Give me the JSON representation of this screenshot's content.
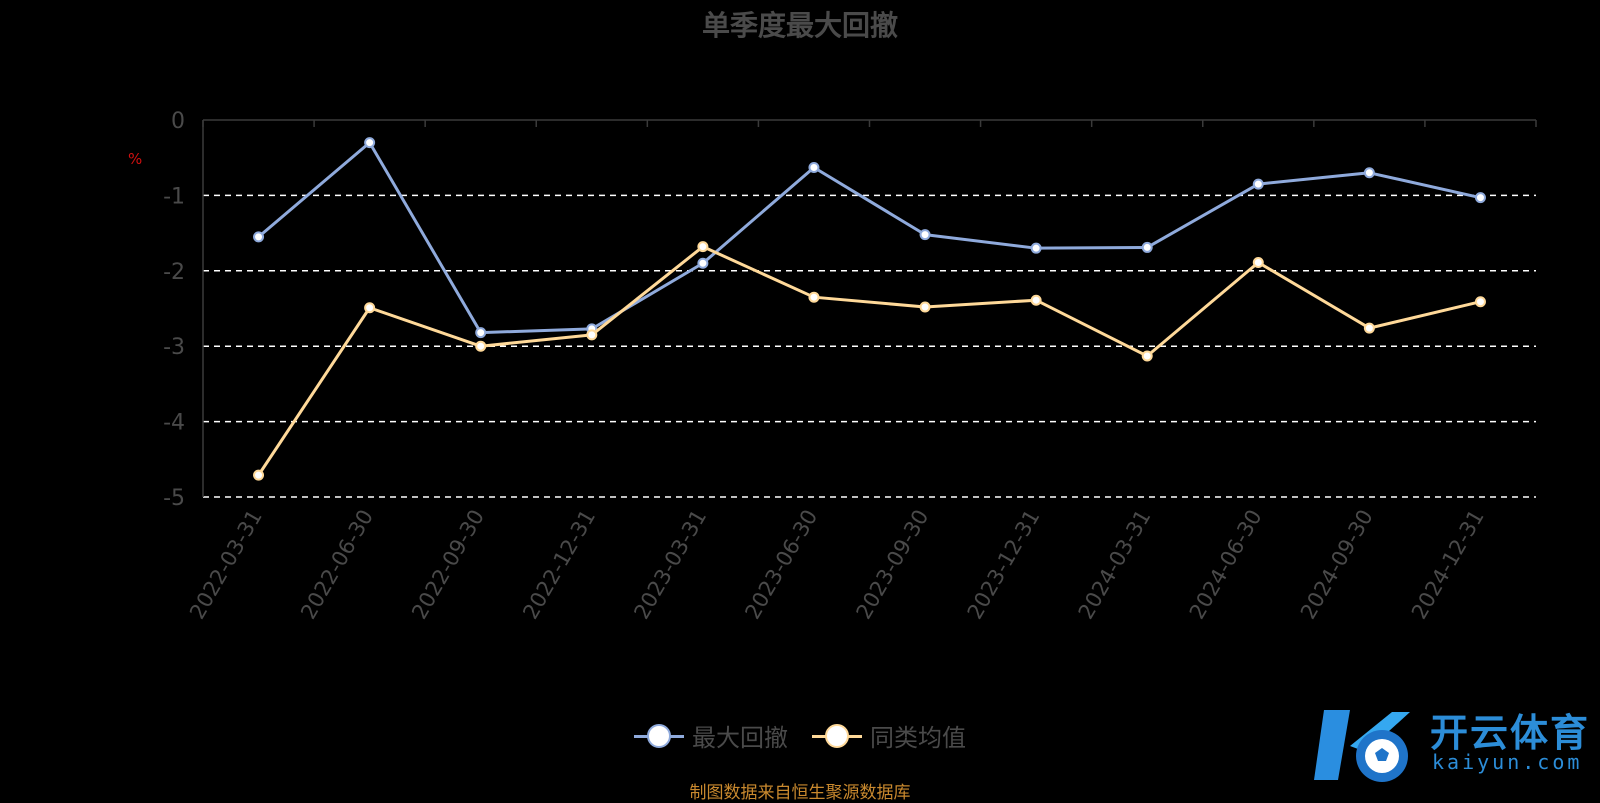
{
  "chart_data": {
    "type": "line",
    "title": "单季度最大回撤",
    "ylabel": "%",
    "ylim": [
      -5,
      0
    ],
    "yticks": [
      0,
      -1,
      -2,
      -3,
      -4,
      -5
    ],
    "grid": "horizontal dashed",
    "legend_position": "bottom",
    "categories": [
      "2022-03-31",
      "2022-06-30",
      "2022-09-30",
      "2022-12-31",
      "2023-03-31",
      "2023-06-30",
      "2023-09-30",
      "2023-12-31",
      "2024-03-31",
      "2024-06-30",
      "2024-09-30",
      "2024-12-31"
    ],
    "series": [
      {
        "name": "最大回撤",
        "color": "#8faadc",
        "values": [
          -1.55,
          -0.3,
          -2.82,
          -2.77,
          -1.9,
          -0.63,
          -1.52,
          -1.7,
          -1.69,
          -0.85,
          -0.7,
          -1.03
        ]
      },
      {
        "name": "同类均值",
        "color": "#ffd999",
        "values": [
          -4.71,
          -2.49,
          -3.0,
          -2.85,
          -1.68,
          -2.35,
          -2.48,
          -2.39,
          -3.13,
          -1.89,
          -2.76,
          -2.41
        ]
      }
    ]
  },
  "source_text": "制图数据来自恒生聚源数据库",
  "logo": {
    "brand": "开云体育",
    "domain": "kaiyun.com"
  }
}
